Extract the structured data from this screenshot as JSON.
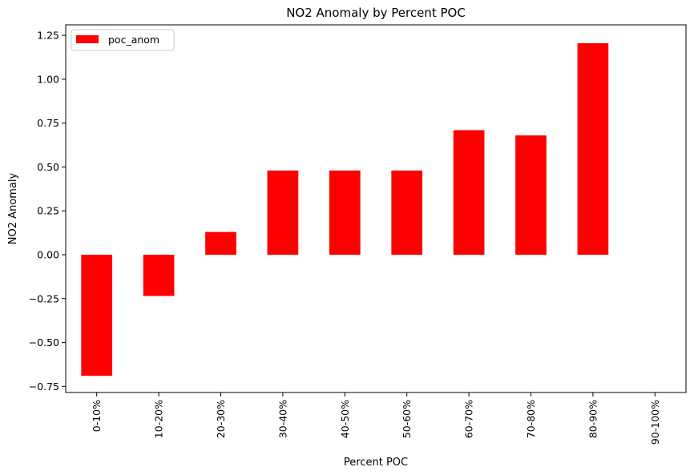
{
  "chart_data": {
    "type": "bar",
    "title": "NO2 Anomaly by Percent POC",
    "xlabel": "Percent POC",
    "ylabel": "NO2 Anomaly",
    "categories": [
      "0-10%",
      "10-20%",
      "20-30%",
      "30-40%",
      "40-50%",
      "50-60%",
      "60-70%",
      "70-80%",
      "80-90%",
      "90-100%"
    ],
    "series": [
      {
        "name": "poc_anom",
        "color": "#ff0000",
        "values": [
          -0.69,
          -0.235,
          0.13,
          0.48,
          0.48,
          0.48,
          0.71,
          0.68,
          1.205,
          null
        ]
      }
    ],
    "ylim": [
      -0.785,
      1.31
    ],
    "yticks": [
      "−0.75",
      "−0.50",
      "−0.25",
      "0.00",
      "0.25",
      "0.50",
      "0.75",
      "1.00",
      "1.25"
    ],
    "ytick_values": [
      -0.75,
      -0.5,
      -0.25,
      0.0,
      0.25,
      0.5,
      0.75,
      1.0,
      1.25
    ],
    "grid": false,
    "legend_position": "top-left"
  }
}
